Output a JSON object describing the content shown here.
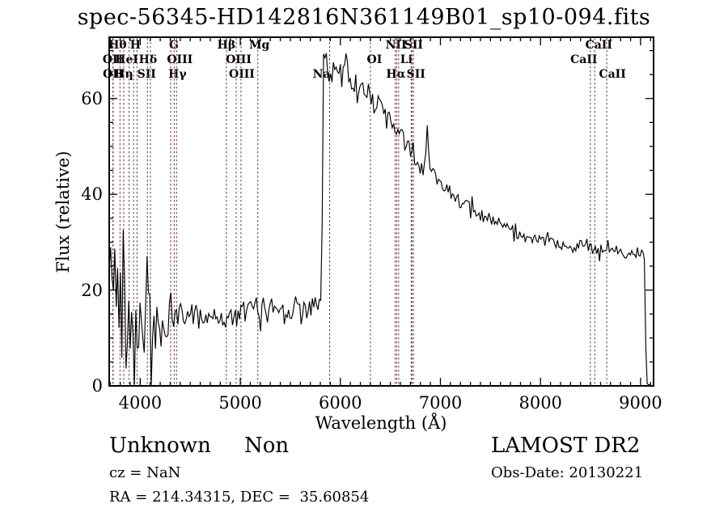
{
  "title": "spec-56345-HD142816N361149B01_sp10-094.fits",
  "footer": {
    "class_text": "Unknown",
    "subclass_text": "Non",
    "cz": "cz = NaN",
    "radec": "RA = 214.34315, DEC =  35.60854",
    "survey": "LAMOST DR2",
    "obs_date": "Obs-Date: 20130221"
  },
  "chart_data": {
    "type": "line",
    "title": "spec-56345-HD142816N361149B01_sp10-094.fits",
    "xlabel": "Wavelength (Å)",
    "ylabel": "Flux (relative)",
    "xlim": [
      3690,
      9130
    ],
    "ylim": [
      0,
      72.8
    ],
    "xticks": [
      4000,
      5000,
      6000,
      7000,
      8000,
      9000
    ],
    "yticks": [
      0,
      20,
      40,
      60
    ],
    "x_minor_step": 100,
    "y_minor_step": 5,
    "grid": false,
    "legend": "none",
    "line_color": "#000000",
    "spectral_line_color": "#6b3b3b",
    "frame_color": "#000000",
    "spectral_lines": [
      {
        "label": "OII",
        "wavelength": 3727,
        "row": 2,
        "dx": 0
      },
      {
        "label": "OII",
        "wavelength": 3729,
        "row": 3,
        "dx": 0
      },
      {
        "label": "Hθ",
        "wavelength": 3798,
        "row": 1,
        "dx": -3
      },
      {
        "label": "Hη",
        "wavelength": 3835,
        "row": 3,
        "dx": 0
      },
      {
        "label": "HeI",
        "wavelength": 3889,
        "row": 2,
        "dx": -3
      },
      {
        "label": "",
        "wavelength": 3934,
        "row": 0,
        "dx": 0
      },
      {
        "label": "H",
        "wavelength": 3968,
        "row": 1,
        "dx": -2
      },
      {
        "label": "SII",
        "wavelength": 4072,
        "row": 3,
        "dx": -1
      },
      {
        "label": "Hδ",
        "wavelength": 4102,
        "row": 2,
        "dx": -3
      },
      {
        "label": "G",
        "wavelength": 4304,
        "row": 1,
        "dx": 4
      },
      {
        "label": "Hγ",
        "wavelength": 4340,
        "row": 3,
        "dx": 4
      },
      {
        "label": "OIII",
        "wavelength": 4363,
        "row": 2,
        "dx": 4
      },
      {
        "label": "Hβ",
        "wavelength": 4861,
        "row": 1,
        "dx": 0
      },
      {
        "label": "OIII",
        "wavelength": 4959,
        "row": 2,
        "dx": 3
      },
      {
        "label": "OIII",
        "wavelength": 5007,
        "row": 3,
        "dx": 1
      },
      {
        "label": "Mg",
        "wavelength": 5175,
        "row": 1,
        "dx": 2
      },
      {
        "label": "Na",
        "wavelength": 5893,
        "row": 3,
        "dx": -10
      },
      {
        "label": "OI",
        "wavelength": 6300,
        "row": 2,
        "dx": 5
      },
      {
        "label": "NII",
        "wavelength": 6548,
        "row": 1,
        "dx": 1
      },
      {
        "label": "Hα",
        "wavelength": 6563,
        "row": 3,
        "dx": -1
      },
      {
        "label": "",
        "wavelength": 6583,
        "row": 0,
        "dx": 0
      },
      {
        "label": "Li",
        "wavelength": 6708,
        "row": 2,
        "dx": -6
      },
      {
        "label": "SII",
        "wavelength": 6716,
        "row": 1,
        "dx": 2
      },
      {
        "label": "SII",
        "wavelength": 6731,
        "row": 3,
        "dx": 3
      },
      {
        "label": "CaII",
        "wavelength": 8498,
        "row": 2,
        "dx": -8
      },
      {
        "label": "CaII",
        "wavelength": 8542,
        "row": 1,
        "dx": 5
      },
      {
        "label": "CaII",
        "wavelength": 8662,
        "row": 3,
        "dx": 7
      }
    ],
    "anchors": {
      "wavelength": [
        3690,
        3700,
        3715,
        3727,
        3740,
        3760,
        3780,
        3800,
        3820,
        3840,
        3860,
        3880,
        3900,
        3920,
        3940,
        3960,
        3980,
        4000,
        4030,
        4060,
        4100,
        4140,
        4180,
        4220,
        4260,
        4300,
        4350,
        4400,
        4450,
        4500,
        4550,
        4600,
        4650,
        4700,
        4750,
        4800,
        4850,
        4900,
        4950,
        5000,
        5050,
        5100,
        5150,
        5200,
        5250,
        5300,
        5350,
        5400,
        5450,
        5500,
        5550,
        5600,
        5650,
        5700,
        5750,
        5800,
        5815,
        5820,
        5828,
        5840,
        5855,
        5870,
        5885,
        5900,
        5915,
        5930,
        5945,
        5960,
        5980,
        6000,
        6020,
        6040,
        6060,
        6080,
        6100,
        6120,
        6140,
        6160,
        6180,
        6200,
        6220,
        6240,
        6260,
        6280,
        6300,
        6330,
        6360,
        6400,
        6440,
        6480,
        6520,
        6560,
        6600,
        6640,
        6680,
        6720,
        6760,
        6800,
        6830,
        6850,
        6865,
        6880,
        6900,
        6940,
        6980,
        7020,
        7060,
        7100,
        7150,
        7200,
        7250,
        7300,
        7350,
        7400,
        7450,
        7500,
        7550,
        7600,
        7650,
        7700,
        7750,
        7800,
        7850,
        7900,
        7950,
        8000,
        8050,
        8100,
        8150,
        8200,
        8250,
        8300,
        8350,
        8400,
        8450,
        8500,
        8550,
        8600,
        8650,
        8700,
        8750,
        8800,
        8850,
        8900,
        8950,
        9000,
        9030,
        9048,
        9052,
        9056,
        9060,
        9105
      ],
      "flux": [
        22,
        18,
        30,
        28,
        20,
        22,
        18,
        20,
        16,
        18,
        14,
        17,
        15,
        16,
        13,
        15,
        12,
        14,
        13,
        14,
        12,
        13,
        11,
        13,
        12,
        14,
        14.5,
        15,
        14.5,
        15.5,
        15,
        15,
        14.5,
        15,
        14,
        14.5,
        14,
        14.5,
        14,
        14.5,
        15.5,
        16,
        16.5,
        16,
        16.5,
        17,
        16.5,
        16,
        16.5,
        16,
        16.5,
        17,
        16.5,
        16,
        16.5,
        17,
        17,
        45,
        66,
        69,
        70,
        66,
        64,
        66,
        63,
        67,
        65,
        68,
        64,
        66,
        63,
        67,
        70,
        64,
        63,
        65,
        62,
        64,
        62,
        64,
        61,
        63,
        61,
        62,
        61,
        60,
        59,
        58.5,
        57,
        56,
        55,
        53.5,
        52,
        51,
        50,
        48.5,
        47,
        45.5,
        45,
        46,
        56,
        48,
        45,
        44,
        43,
        42.5,
        41.5,
        40.5,
        39.5,
        38.5,
        37.5,
        37,
        36,
        35.5,
        35,
        34.5,
        34,
        33.5,
        33,
        32.5,
        32,
        31.5,
        31,
        30.8,
        30.5,
        30.2,
        30,
        29.8,
        29.5,
        29.3,
        29,
        28.8,
        29.2,
        30,
        29.3,
        28.6,
        28,
        27.6,
        28.2,
        28.8,
        28.4,
        28,
        27.8,
        27.6,
        28,
        28.2,
        27.5,
        26.5,
        8,
        2,
        0.5,
        0.3
      ]
    },
    "noise_bands": [
      {
        "from": 3690,
        "to": 3980,
        "amp": 11
      },
      {
        "from": 3980,
        "to": 4150,
        "amp": 7.5
      },
      {
        "from": 4150,
        "to": 4320,
        "amp": 5.5
      },
      {
        "from": 4320,
        "to": 5812,
        "amp": 2.3
      },
      {
        "from": 5812,
        "to": 6320,
        "amp": 2.4
      },
      {
        "from": 6320,
        "to": 6900,
        "amp": 1.8
      },
      {
        "from": 6900,
        "to": 7600,
        "amp": 1.4
      },
      {
        "from": 7600,
        "to": 8450,
        "amp": 1.1
      },
      {
        "from": 8450,
        "to": 9040,
        "amp": 1.2
      },
      {
        "from": 9040,
        "to": 9130,
        "amp": 0.15
      }
    ],
    "seed": 42
  }
}
